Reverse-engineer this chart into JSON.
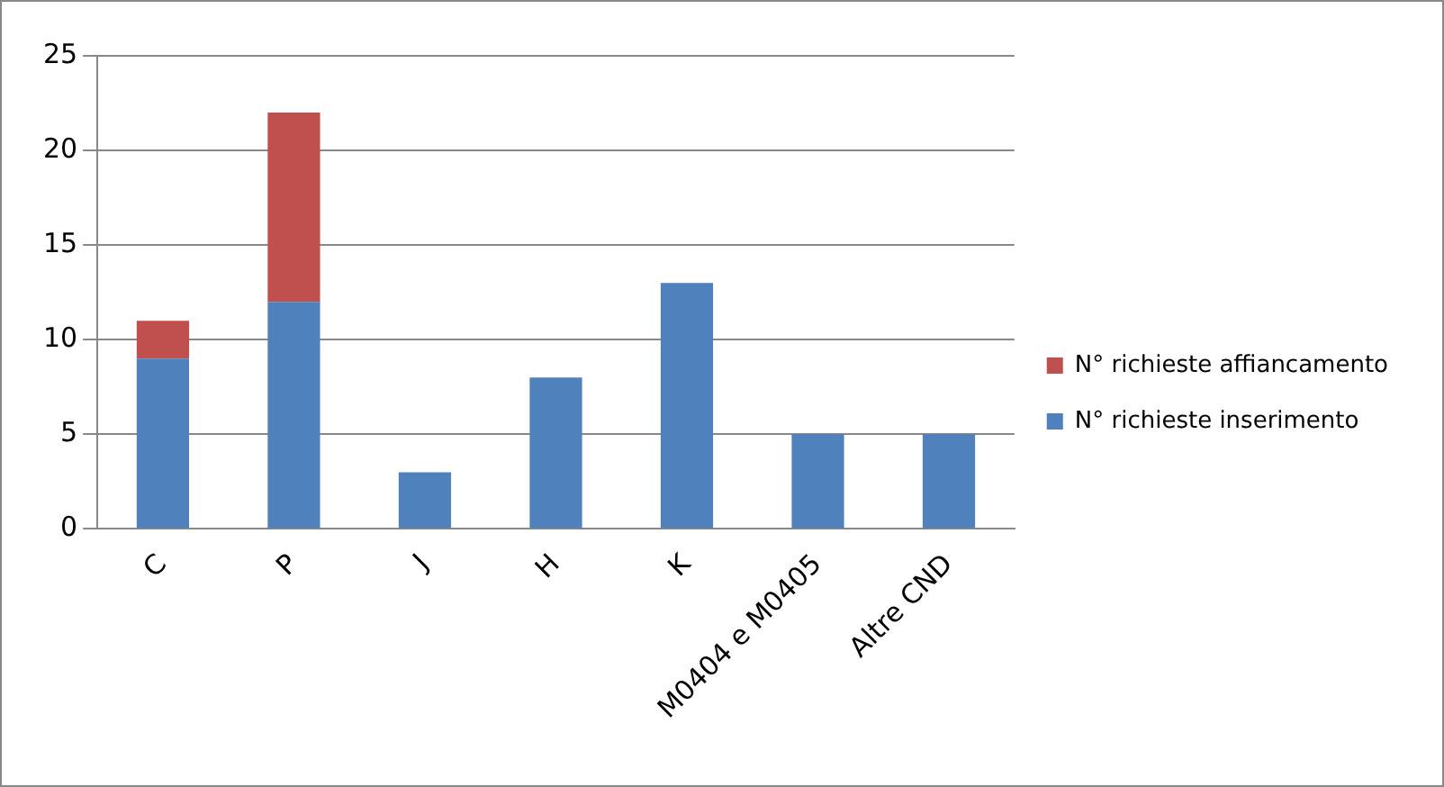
{
  "chart_data": {
    "type": "bar",
    "stacked": true,
    "categories": [
      "C",
      "P",
      "J",
      "H",
      "K",
      "M0404 e M0405",
      "Altre CND"
    ],
    "series": [
      {
        "name": "N° richieste inserimento",
        "color": "#4f81bd",
        "values": [
          9,
          12,
          3,
          8,
          13,
          5,
          5
        ]
      },
      {
        "name": "N° richieste affiancamento",
        "color": "#c0504d",
        "values": [
          2,
          10,
          0,
          0,
          0,
          0,
          0
        ]
      }
    ],
    "ylim": [
      0,
      25
    ],
    "yticks": [
      0,
      5,
      10,
      15,
      20,
      25
    ],
    "grid": "y",
    "legend": "right"
  }
}
